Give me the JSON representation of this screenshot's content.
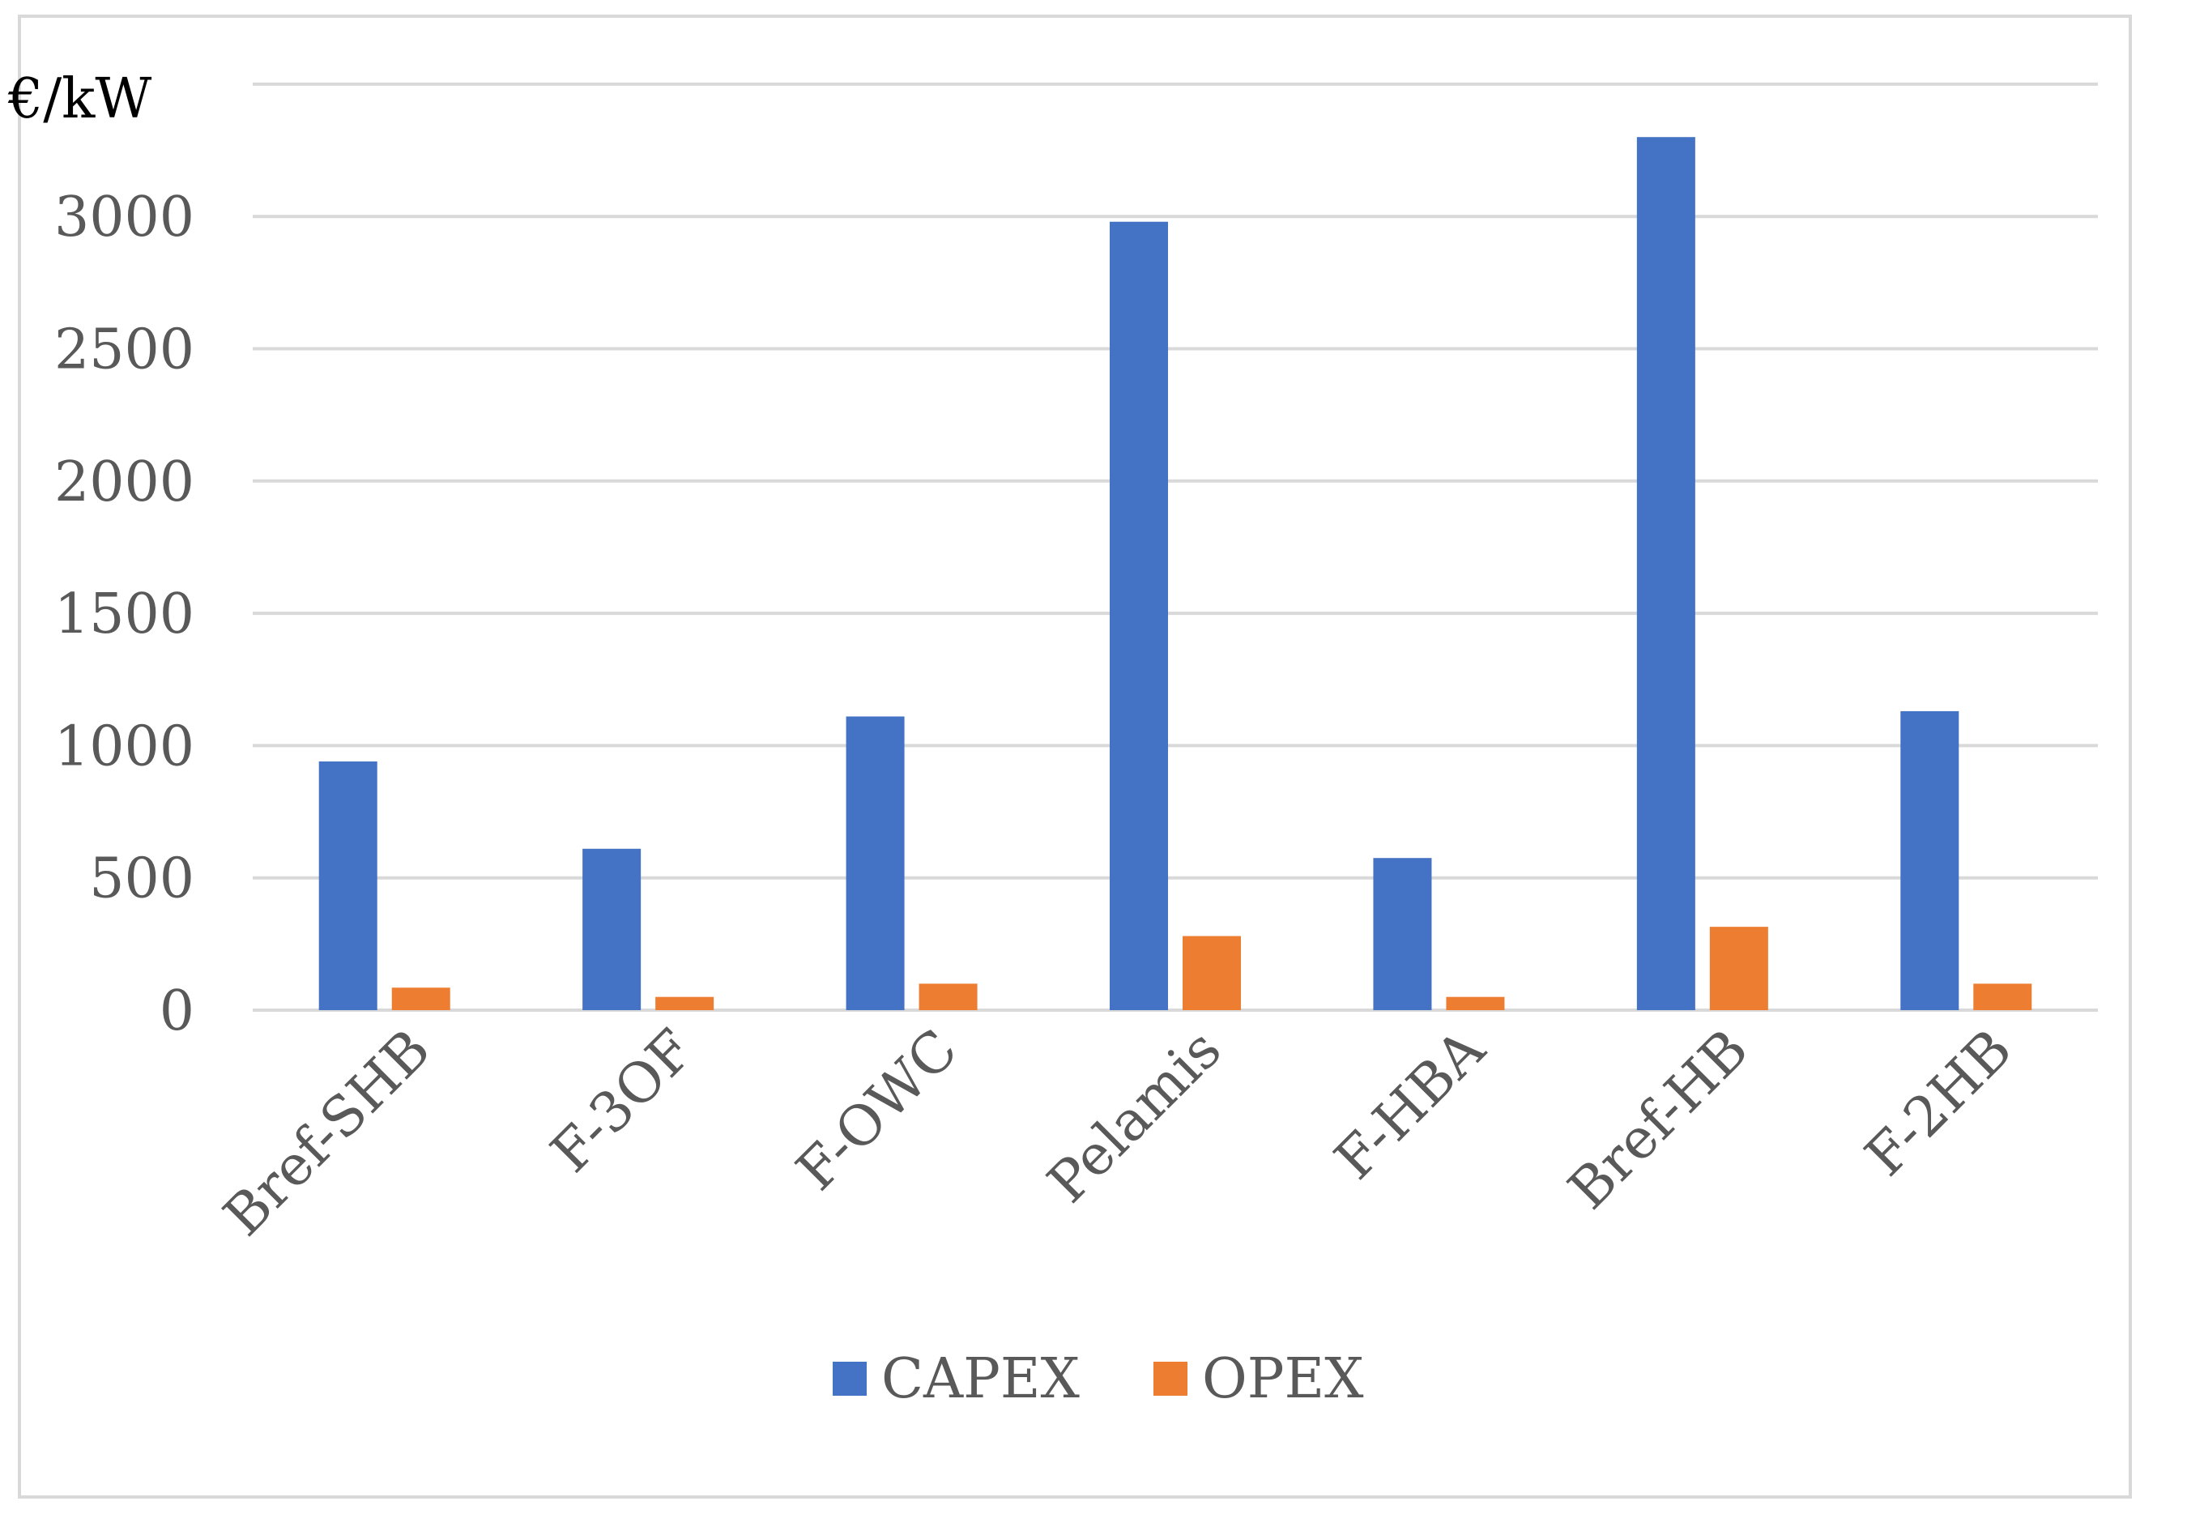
{
  "chart_data": {
    "type": "bar",
    "title": "",
    "xlabel": "",
    "ylabel": "€/kW",
    "ylim": [
      0,
      3500
    ],
    "yticks": [
      0,
      500,
      1000,
      1500,
      2000,
      2500,
      3000
    ],
    "grid": true,
    "legend_position": "bottom",
    "categories": [
      "Bref-SHB",
      "F-3OF",
      "F-OWC",
      "Pelamis",
      "F-HBA",
      "Bref-HB",
      "F-2HB"
    ],
    "series": [
      {
        "name": "CAPEX",
        "color": "#4472c4",
        "values": [
          940,
          610,
          1110,
          2980,
          575,
          3300,
          1130
        ]
      },
      {
        "name": "OPEX",
        "color": "#ed7d31",
        "values": [
          85,
          50,
          100,
          280,
          50,
          315,
          100
        ]
      }
    ]
  }
}
